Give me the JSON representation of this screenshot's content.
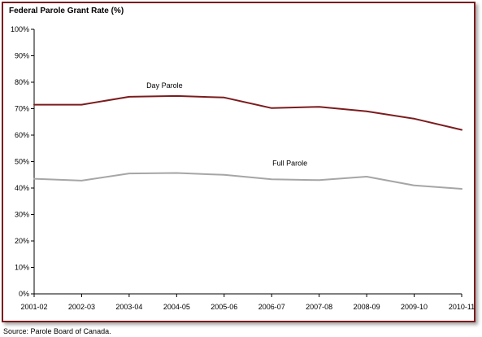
{
  "colors": {
    "frame_border": "#7b1c1e",
    "day_parole_line": "#7b1c1e",
    "full_parole_line": "#a6a6a6"
  },
  "source_note": "Source:  Parole Board of Canada.",
  "chart_data": {
    "type": "line",
    "title": "Federal Parole Grant Rate (%)",
    "xlabel": "",
    "ylabel": "",
    "categories": [
      "2001-02",
      "2002-03",
      "2003-04",
      "2004-05",
      "2005-06",
      "2006-07",
      "2007-08",
      "2008-09",
      "2009-10",
      "2010-11"
    ],
    "ylim": [
      0,
      100
    ],
    "yticks": [
      "0%",
      "10%",
      "20%",
      "30%",
      "40%",
      "50%",
      "60%",
      "70%",
      "80%",
      "90%",
      "100%"
    ],
    "grid": false,
    "series": [
      {
        "name": "Day Parole",
        "color": "#7b1c1e",
        "values": [
          71.5,
          71.5,
          74.5,
          74.8,
          74.2,
          70.2,
          70.7,
          69.0,
          66.2,
          62.0
        ]
      },
      {
        "name": "Full Parole",
        "color": "#a6a6a6",
        "values": [
          43.5,
          42.8,
          45.5,
          45.7,
          45.0,
          43.3,
          43.0,
          44.3,
          41.0,
          39.7
        ]
      }
    ]
  }
}
